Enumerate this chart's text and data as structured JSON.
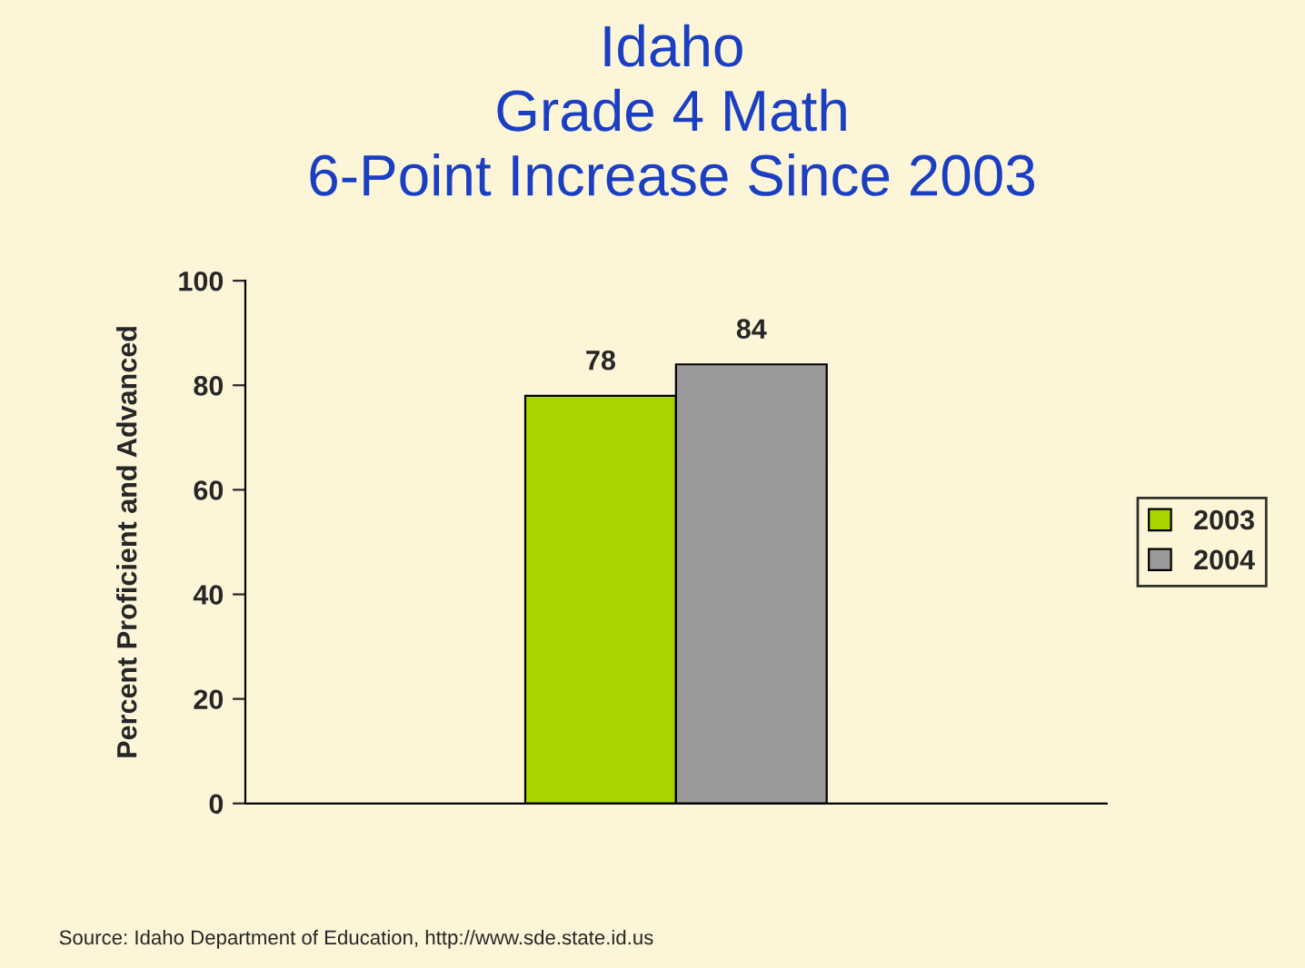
{
  "chart_data": {
    "type": "bar",
    "title": "Idaho\nGrade 4 Math\n6-Point Increase Since 2003",
    "ylabel": "Percent Proficient and Advanced",
    "categories": [
      null
    ],
    "series": [
      {
        "name": "2003",
        "color": "#a8d400",
        "values": [
          78
        ]
      },
      {
        "name": "2004",
        "color": "#999999",
        "values": [
          84
        ]
      }
    ],
    "ylim": [
      0,
      100
    ],
    "yticks": [
      0,
      20,
      40,
      60,
      80,
      100
    ],
    "data_labels": true,
    "legend": "right",
    "grid": false,
    "annotations": [
      "Source: Idaho Department of Education, http://www.sde.state.id.us"
    ]
  }
}
